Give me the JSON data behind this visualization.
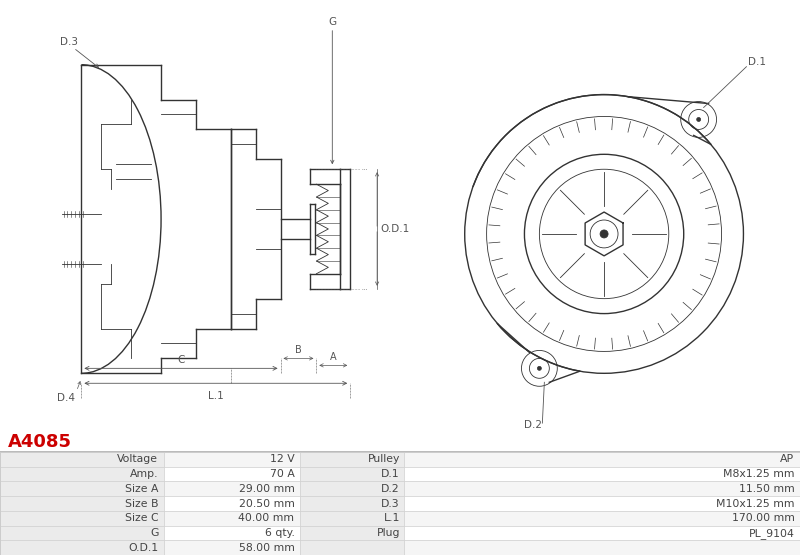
{
  "title": "A4085",
  "title_color": "#cc0000",
  "table_data": [
    [
      "Voltage",
      "12 V",
      "Pulley",
      "AP"
    ],
    [
      "Amp.",
      "70 A",
      "D.1",
      "M8x1.25 mm"
    ],
    [
      "Size A",
      "29.00 mm",
      "D.2",
      "11.50 mm"
    ],
    [
      "Size B",
      "20.50 mm",
      "D.3",
      "M10x1.25 mm"
    ],
    [
      "Size C",
      "40.00 mm",
      "L.1",
      "170.00 mm"
    ],
    [
      "G",
      "6 qty.",
      "Plug",
      "PL_9104"
    ],
    [
      "O.D.1",
      "58.00 mm",
      "",
      ""
    ]
  ],
  "header_bg": "#ebebeb",
  "row_bg_even": "#f5f5f5",
  "row_bg_odd": "#ffffff",
  "border_color": "#cccccc",
  "text_color": "#444444",
  "fig_bg": "#ffffff",
  "line_color": "#333333",
  "dim_color": "#555555",
  "lw_main": 1.0,
  "lw_thin": 0.6,
  "lw_dim": 0.5
}
